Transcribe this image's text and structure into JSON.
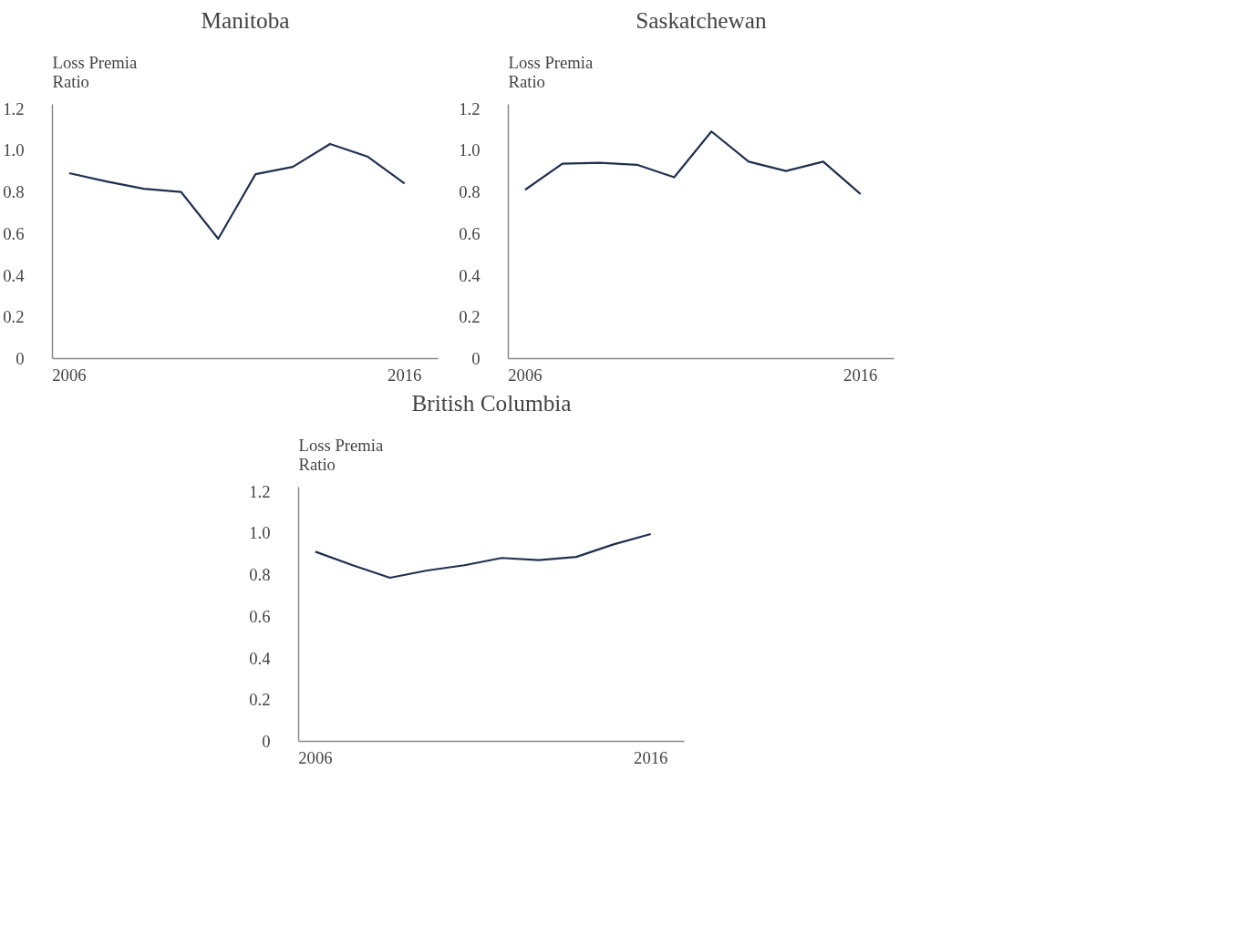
{
  "chart_data": [
    {
      "type": "line",
      "title": "Manitoba",
      "ylabel": "Loss Premia\nRatio",
      "categories": [
        "2006",
        null,
        null,
        null,
        null,
        null,
        null,
        null,
        null,
        "2016"
      ],
      "series": [
        {
          "color": "#1f3050",
          "values": [
            0.89,
            0.85,
            0.815,
            0.8,
            0.575,
            0.885,
            0.92,
            1.03,
            0.97,
            0.84
          ]
        }
      ],
      "ylim": [
        0,
        1.22
      ],
      "yticks": [
        0,
        {
          "value": 0.2,
          "label": "0.2"
        },
        {
          "value": 0.4,
          "label": "0.4"
        },
        {
          "value": 0.6,
          "label": "0.6"
        },
        {
          "value": 0.8,
          "label": "0.8"
        },
        {
          "value": 1.0,
          "label": "1.0"
        },
        {
          "value": 1.2,
          "label": "1.2"
        }
      ],
      "grid": false
    },
    {
      "type": "line",
      "title": "Saskatchewan",
      "ylabel": "Loss Premia\nRatio",
      "categories": [
        "2006",
        null,
        null,
        null,
        null,
        null,
        null,
        null,
        null,
        "2016"
      ],
      "series": [
        {
          "color": "#1f3050",
          "values": [
            0.81,
            0.935,
            0.94,
            0.93,
            0.87,
            1.09,
            0.945,
            0.9,
            0.945,
            0.79
          ]
        }
      ],
      "ylim": [
        0,
        1.22
      ],
      "yticks": [
        0,
        {
          "value": 0.2,
          "label": "0.2"
        },
        {
          "value": 0.4,
          "label": "0.4"
        },
        {
          "value": 0.6,
          "label": "0.6"
        },
        {
          "value": 0.8,
          "label": "0.8"
        },
        {
          "value": 1.0,
          "label": "1.0"
        },
        {
          "value": 1.2,
          "label": "1.2"
        }
      ],
      "grid": false
    },
    {
      "type": "line",
      "title": "British Columbia",
      "ylabel": "Loss Premia\nRatio",
      "categories": [
        "2006",
        null,
        null,
        null,
        null,
        null,
        null,
        null,
        null,
        "2016"
      ],
      "series": [
        {
          "color": "#1f3050",
          "values": [
            0.91,
            0.845,
            0.785,
            0.82,
            0.845,
            0.88,
            0.87,
            0.885,
            0.945,
            0.995
          ]
        }
      ],
      "ylim": [
        0,
        1.22
      ],
      "yticks": [
        0,
        {
          "value": 0.2,
          "label": "0.2"
        },
        {
          "value": 0.4,
          "label": "0.4"
        },
        {
          "value": 0.6,
          "label": "0.6"
        },
        {
          "value": 0.8,
          "label": "0.8"
        },
        {
          "value": 1.0,
          "label": "1.0"
        },
        {
          "value": 1.2,
          "label": "1.2"
        }
      ],
      "grid": false
    }
  ]
}
